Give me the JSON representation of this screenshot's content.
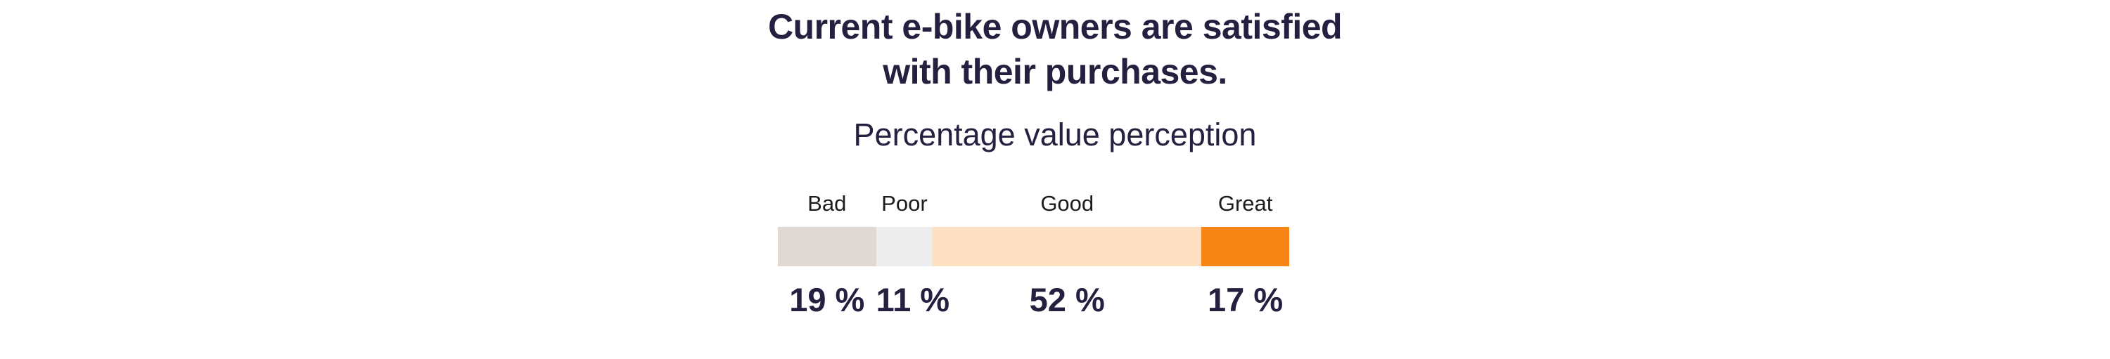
{
  "page": {
    "background": "#FFFFFF"
  },
  "header": {
    "title_line1": "Current e-bike owners are satisfied",
    "title_line2": "with their purchases.",
    "subtitle": "Percentage value perception"
  },
  "colors": {
    "title_text": "#242040",
    "subtitle_text": "#242040",
    "category_label_text": "#1C1C1C",
    "value_text": "#242040"
  },
  "chart_data": {
    "type": "bar",
    "variant": "horizontal-stacked-100pct",
    "title": "Current e-bike owners are satisfied with their purchases.",
    "subtitle": "Percentage value perception",
    "unit": "%",
    "categories": [
      "Bad",
      "Poor",
      "Good",
      "Great"
    ],
    "values": [
      19,
      11,
      52,
      17
    ],
    "legend": "none",
    "grid": "off",
    "segments": [
      {
        "label": "Bad",
        "value": 19,
        "display": "19 %",
        "color": "#E0D8D2"
      },
      {
        "label": "Poor",
        "value": 11,
        "display": "11 %",
        "color": "#EDEDED"
      },
      {
        "label": "Good",
        "value": 52,
        "display": "52 %",
        "color": "#FDDFC3"
      },
      {
        "label": "Great",
        "value": 17,
        "display": "17 %",
        "color": "#F78516"
      }
    ]
  }
}
